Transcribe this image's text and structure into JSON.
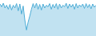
{
  "chart_data": {
    "type": "area",
    "values": [
      -0.5,
      -1.2,
      -0.3,
      -1.5,
      -0.8,
      -1.8,
      -0.6,
      -2.0,
      -0.8,
      -1.5,
      -0.4,
      -2.2,
      -0.5,
      -3.0,
      -1.0,
      -4.5,
      -7.0,
      -5.0,
      -3.5,
      -1.8,
      -0.4,
      -1.5,
      -0.3,
      -1.8,
      -0.6,
      -2.0,
      -0.5,
      -1.5,
      -0.8,
      -1.2,
      -0.4,
      -1.8,
      -0.6,
      -1.5,
      -0.4,
      -1.8,
      -0.5,
      -1.5,
      -0.8,
      -1.2,
      -0.3,
      -1.6,
      -0.5,
      -1.3,
      -0.6,
      -1.8,
      -0.4,
      -1.5,
      -0.7,
      -1.2,
      -0.5,
      -1.6,
      -0.4,
      -1.4,
      -0.6,
      -1.7,
      -0.5,
      -1.3,
      -0.8
    ],
    "color": "#4dacd6",
    "ylim": [
      -8.5,
      0.5
    ],
    "grid": false,
    "tick_labels": false
  }
}
